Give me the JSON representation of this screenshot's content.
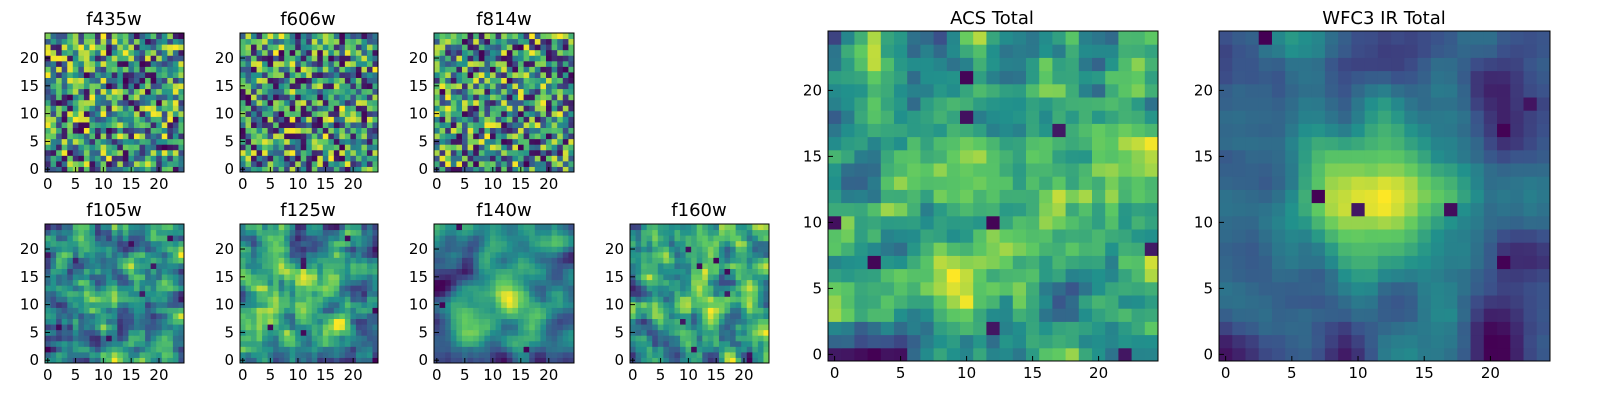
{
  "figure": {
    "background": "#ffffff"
  },
  "colormap": {
    "name": "viridis",
    "stops": [
      "#440154",
      "#3b528b",
      "#21918c",
      "#5ec962",
      "#fde725"
    ]
  },
  "chart_data": [
    {
      "id": "f435w",
      "type": "heatmap",
      "title": "f435w",
      "grid_size": 25,
      "xlim": [
        0,
        24
      ],
      "ylim": [
        0,
        24
      ],
      "xticks": [
        0,
        5,
        10,
        15,
        20
      ],
      "yticks": [
        0,
        5,
        10,
        15,
        20
      ],
      "seed": 11,
      "smooth": 0,
      "gauss_amp": 0,
      "dark_spots": 6
    },
    {
      "id": "f606w",
      "type": "heatmap",
      "title": "f606w",
      "grid_size": 25,
      "xlim": [
        0,
        24
      ],
      "ylim": [
        0,
        24
      ],
      "xticks": [
        0,
        5,
        10,
        15,
        20
      ],
      "yticks": [
        0,
        5,
        10,
        15,
        20
      ],
      "seed": 23,
      "smooth": 0,
      "gauss_amp": 0,
      "dark_spots": 12
    },
    {
      "id": "f814w",
      "type": "heatmap",
      "title": "f814w",
      "grid_size": 25,
      "xlim": [
        0,
        24
      ],
      "ylim": [
        0,
        24
      ],
      "xticks": [
        0,
        5,
        10,
        15,
        20
      ],
      "yticks": [
        0,
        5,
        10,
        15,
        20
      ],
      "seed": 37,
      "smooth": 0,
      "gauss_amp": 0,
      "dark_spots": 8
    },
    {
      "id": "f105w",
      "type": "heatmap",
      "title": "f105w",
      "grid_size": 25,
      "xlim": [
        0,
        24
      ],
      "ylim": [
        0,
        24
      ],
      "xticks": [
        0,
        5,
        10,
        15,
        20
      ],
      "yticks": [
        0,
        5,
        10,
        15,
        20
      ],
      "seed": 41,
      "smooth": 1,
      "gauss_amp": 0.15,
      "dark_spots": 5
    },
    {
      "id": "f125w",
      "type": "heatmap",
      "title": "f125w",
      "grid_size": 25,
      "xlim": [
        0,
        24
      ],
      "ylim": [
        0,
        24
      ],
      "xticks": [
        0,
        5,
        10,
        15,
        20
      ],
      "yticks": [
        0,
        5,
        10,
        15,
        20
      ],
      "seed": 53,
      "smooth": 1,
      "gauss_amp": 0.15,
      "dark_spots": 6
    },
    {
      "id": "f140w",
      "type": "heatmap",
      "title": "f140w",
      "grid_size": 25,
      "xlim": [
        0,
        24
      ],
      "ylim": [
        0,
        24
      ],
      "xticks": [
        0,
        5,
        10,
        15,
        20
      ],
      "yticks": [
        0,
        5,
        10,
        15,
        20
      ],
      "seed": 67,
      "smooth": 2,
      "gauss_amp": 0.35,
      "dark_spots": 3
    },
    {
      "id": "f160w",
      "type": "heatmap",
      "title": "f160w",
      "grid_size": 25,
      "xlim": [
        0,
        24
      ],
      "ylim": [
        0,
        24
      ],
      "xticks": [
        0,
        5,
        10,
        15,
        20
      ],
      "yticks": [
        0,
        5,
        10,
        15,
        20
      ],
      "seed": 79,
      "smooth": 1,
      "gauss_amp": 0.2,
      "dark_spots": 7
    },
    {
      "id": "acs-total",
      "type": "heatmap",
      "title": "ACS Total",
      "grid_size": 25,
      "xlim": [
        0,
        24
      ],
      "ylim": [
        0,
        24
      ],
      "xticks": [
        0,
        5,
        10,
        15,
        20
      ],
      "yticks": [
        0,
        5,
        10,
        15,
        20
      ],
      "seed": 97,
      "smooth": 1,
      "gauss_amp": 0.05,
      "dark_spots": 9
    },
    {
      "id": "wfc3-ir-total",
      "type": "heatmap",
      "title": "WFC3 IR Total",
      "grid_size": 25,
      "xlim": [
        0,
        24
      ],
      "ylim": [
        0,
        24
      ],
      "xticks": [
        0,
        5,
        10,
        15,
        20
      ],
      "yticks": [
        0,
        5,
        10,
        15,
        20
      ],
      "seed": 131,
      "smooth": 2,
      "gauss_amp": 0.75,
      "dark_spots": 7
    }
  ]
}
